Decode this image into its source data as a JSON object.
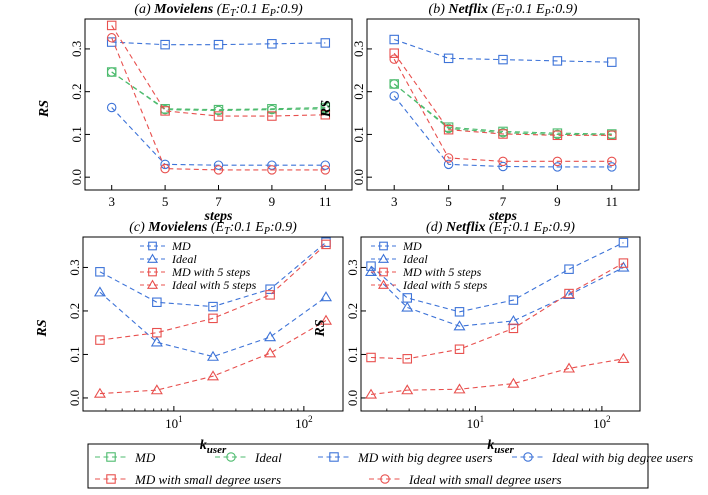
{
  "colors": {
    "green": "#4dbb6e",
    "blue": "#3d73d8",
    "red": "#e8504e",
    "frame": "#000000"
  },
  "ylabel": "RS",
  "xlabel_steps": "steps",
  "xlabel_k_main": "k",
  "xlabel_k_sub": "user",
  "chart_data": [
    {
      "id": "a",
      "type": "line",
      "title_prefix": "(a) ",
      "title_name": "Movielens",
      "title_suffix": " (E",
      "title_sub1": "T",
      "title_mid": ":0.1 E",
      "title_sub2": "P",
      "title_end": ":0.9)",
      "xlabel": "steps",
      "ylabel": "RS",
      "xscale": "linear",
      "x": [
        3,
        5,
        7,
        9,
        11
      ],
      "xlim": [
        2,
        12
      ],
      "ylim": [
        -0.03,
        0.37
      ],
      "xticks": [
        "3",
        "5",
        "7",
        "9",
        "11"
      ],
      "yticks": [
        "0.0",
        "0.1",
        "0.2",
        "0.3"
      ],
      "series": [
        {
          "name": "MD",
          "color": "green",
          "marker": "square",
          "values": [
            0.246,
            0.16,
            0.158,
            0.16,
            0.163
          ]
        },
        {
          "name": "Ideal",
          "color": "green",
          "marker": "circle",
          "values": [
            0.246,
            0.158,
            0.156,
            0.158,
            0.16
          ]
        },
        {
          "name": "MD with big degree users",
          "color": "blue",
          "marker": "square",
          "values": [
            0.316,
            0.31,
            0.31,
            0.312,
            0.314
          ]
        },
        {
          "name": "Ideal with big degree users",
          "color": "blue",
          "marker": "circle",
          "values": [
            0.163,
            0.03,
            0.028,
            0.028,
            0.028
          ]
        },
        {
          "name": "MD with small degree users",
          "color": "red",
          "marker": "square",
          "values": [
            0.355,
            0.155,
            0.143,
            0.143,
            0.146
          ]
        },
        {
          "name": "Ideal with small degree users",
          "color": "red",
          "marker": "circle",
          "values": [
            0.326,
            0.02,
            0.017,
            0.017,
            0.017
          ]
        }
      ]
    },
    {
      "id": "b",
      "type": "line",
      "title_prefix": "(b) ",
      "title_name": "Netflix",
      "title_suffix": " (E",
      "title_sub1": "T",
      "title_mid": ":0.1 E",
      "title_sub2": "P",
      "title_end": ":0.9)",
      "xlabel": "steps",
      "ylabel": "RS",
      "xscale": "linear",
      "x": [
        3,
        5,
        7,
        9,
        11
      ],
      "xlim": [
        2,
        12
      ],
      "ylim": [
        -0.03,
        0.37
      ],
      "xticks": [
        "3",
        "5",
        "7",
        "9",
        "11"
      ],
      "yticks": [
        "0.0",
        "0.1",
        "0.2",
        "0.3"
      ],
      "series": [
        {
          "name": "MD",
          "color": "green",
          "marker": "square",
          "values": [
            0.218,
            0.117,
            0.107,
            0.103,
            0.101
          ]
        },
        {
          "name": "Ideal",
          "color": "green",
          "marker": "circle",
          "values": [
            0.218,
            0.114,
            0.104,
            0.1,
            0.099
          ]
        },
        {
          "name": "MD with big degree users",
          "color": "blue",
          "marker": "square",
          "values": [
            0.322,
            0.278,
            0.275,
            0.272,
            0.269
          ]
        },
        {
          "name": "Ideal with big degree users",
          "color": "blue",
          "marker": "circle",
          "values": [
            0.19,
            0.03,
            0.025,
            0.024,
            0.024
          ]
        },
        {
          "name": "MD with small degree users",
          "color": "red",
          "marker": "square",
          "values": [
            0.29,
            0.111,
            0.101,
            0.098,
            0.098
          ]
        },
        {
          "name": "Ideal with small degree users",
          "color": "red",
          "marker": "circle",
          "values": [
            0.276,
            0.045,
            0.037,
            0.037,
            0.037
          ]
        }
      ]
    },
    {
      "id": "c",
      "type": "line",
      "title_prefix": "(c) ",
      "title_name": "Movielens",
      "title_suffix": " (E",
      "title_sub1": "T",
      "title_mid": ":0.1 E",
      "title_sub2": "P",
      "title_end": ":0.9)",
      "xlabel": "k user",
      "ylabel": "RS",
      "xscale": "log",
      "xlim": [
        2.0,
        200
      ],
      "ylim": [
        -0.03,
        0.37
      ],
      "xticks": [
        {
          "v": 10,
          "base": "10",
          "exp": "1"
        },
        {
          "v": 100,
          "base": "10",
          "exp": "2"
        }
      ],
      "yticks": [
        "0.0",
        "0.1",
        "0.2",
        "0.3"
      ],
      "legend_position": "upper-center",
      "series": [
        {
          "name": "MD",
          "color": "blue",
          "marker": "square",
          "x": [
            2.7,
            7.4,
            20,
            55,
            148
          ],
          "values": [
            0.29,
            0.22,
            0.21,
            0.25,
            0.358
          ]
        },
        {
          "name": "Ideal",
          "color": "blue",
          "marker": "triangle",
          "x": [
            2.7,
            7.4,
            20,
            55,
            148
          ],
          "values": [
            0.243,
            0.128,
            0.095,
            0.14,
            0.232
          ]
        },
        {
          "name": "MD with 5 steps",
          "color": "red",
          "marker": "square",
          "x": [
            2.7,
            7.4,
            20,
            55,
            148
          ],
          "values": [
            0.133,
            0.15,
            0.183,
            0.237,
            0.353
          ]
        },
        {
          "name": "Ideal with 5 steps",
          "color": "red",
          "marker": "triangle",
          "x": [
            2.7,
            7.4,
            20,
            55,
            148
          ],
          "values": [
            0.01,
            0.018,
            0.05,
            0.103,
            0.178
          ]
        }
      ]
    },
    {
      "id": "d",
      "type": "line",
      "title_prefix": "(d) ",
      "title_name": "Netflix",
      "title_suffix": " (E",
      "title_sub1": "T",
      "title_mid": ":0.1 E",
      "title_sub2": "P",
      "title_end": ":0.9)",
      "xlabel": "k user",
      "ylabel": "RS",
      "xscale": "log",
      "xlim": [
        1.25,
        200
      ],
      "ylim": [
        -0.03,
        0.37
      ],
      "xticks": [
        {
          "v": 10,
          "base": "10",
          "exp": "1"
        },
        {
          "v": 100,
          "base": "10",
          "exp": "2"
        }
      ],
      "yticks": [
        "0.0",
        "0.1",
        "0.2",
        "0.3"
      ],
      "legend_position": "upper-left",
      "series": [
        {
          "name": "MD",
          "color": "blue",
          "marker": "square",
          "x": [
            1.5,
            2.9,
            7.5,
            20,
            55,
            148
          ],
          "values": [
            0.303,
            0.23,
            0.198,
            0.225,
            0.296,
            0.357
          ]
        },
        {
          "name": "Ideal",
          "color": "blue",
          "marker": "triangle",
          "x": [
            1.5,
            2.9,
            7.5,
            20,
            55,
            148
          ],
          "values": [
            0.29,
            0.208,
            0.165,
            0.177,
            0.237,
            0.3
          ]
        },
        {
          "name": "MD with 5 steps",
          "color": "red",
          "marker": "square",
          "x": [
            1.5,
            2.9,
            7.5,
            20,
            55,
            148
          ],
          "values": [
            0.093,
            0.09,
            0.112,
            0.16,
            0.24,
            0.31
          ]
        },
        {
          "name": "Ideal with 5 steps",
          "color": "red",
          "marker": "triangle",
          "x": [
            1.5,
            2.9,
            7.5,
            20,
            55,
            148
          ],
          "values": [
            0.008,
            0.018,
            0.02,
            0.033,
            0.068,
            0.09
          ]
        }
      ]
    }
  ],
  "legend": [
    {
      "label": "MD",
      "color": "green",
      "marker": "square"
    },
    {
      "label": "Ideal",
      "color": "green",
      "marker": "circle"
    },
    {
      "label": "MD with big degree users",
      "color": "blue",
      "marker": "square"
    },
    {
      "label": "Ideal with big degree users",
      "color": "blue",
      "marker": "circle"
    },
    {
      "label": "MD with small degree users",
      "color": "red",
      "marker": "square"
    },
    {
      "label": "Ideal with small degree users",
      "color": "red",
      "marker": "circle"
    }
  ]
}
